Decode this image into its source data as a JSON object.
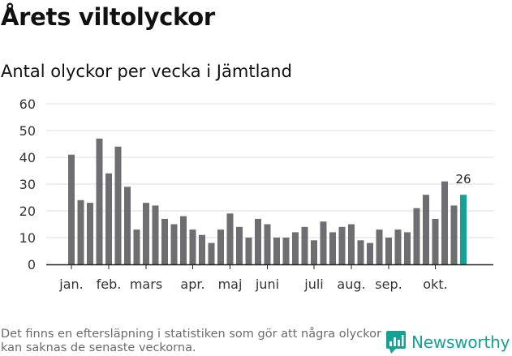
{
  "header": {
    "title": "Årets viltolyckor",
    "subtitle": "Antal olyckor per vecka i Jämtland"
  },
  "colors": {
    "bar": "#6e6e72",
    "highlight": "#13a294",
    "grid": "#dcdcdc",
    "brand": "#13a294"
  },
  "chart_data": {
    "type": "bar",
    "title": "Antal olyckor per vecka i Jämtland",
    "xlabel": "",
    "ylabel": "",
    "ylim": [
      0,
      60
    ],
    "yticks": [
      0,
      10,
      20,
      30,
      40,
      50,
      60
    ],
    "grid": true,
    "values": [
      41,
      24,
      23,
      47,
      34,
      44,
      29,
      13,
      23,
      22,
      17,
      15,
      18,
      13,
      11,
      8,
      13,
      19,
      14,
      10,
      17,
      15,
      10,
      10,
      12,
      14,
      9,
      16,
      12,
      14,
      15,
      9,
      8,
      13,
      10,
      13,
      12,
      21,
      26,
      17,
      31,
      22,
      26
    ],
    "highlight_index": 42,
    "highlight_label": "26",
    "month_labels": [
      {
        "label": "jan.",
        "bar_index": 0
      },
      {
        "label": "feb.",
        "bar_index": 4
      },
      {
        "label": "mars",
        "bar_index": 8
      },
      {
        "label": "apr.",
        "bar_index": 13
      },
      {
        "label": "maj",
        "bar_index": 17
      },
      {
        "label": "juni",
        "bar_index": 21
      },
      {
        "label": "juli",
        "bar_index": 26
      },
      {
        "label": "aug.",
        "bar_index": 30
      },
      {
        "label": "sep.",
        "bar_index": 34
      },
      {
        "label": "okt.",
        "bar_index": 39
      }
    ]
  },
  "footer": {
    "note": "Det finns en eftersläpning i statistiken som gör att några olyckor kan saknas de senaste veckorna.",
    "brand": "Newsworthy"
  }
}
